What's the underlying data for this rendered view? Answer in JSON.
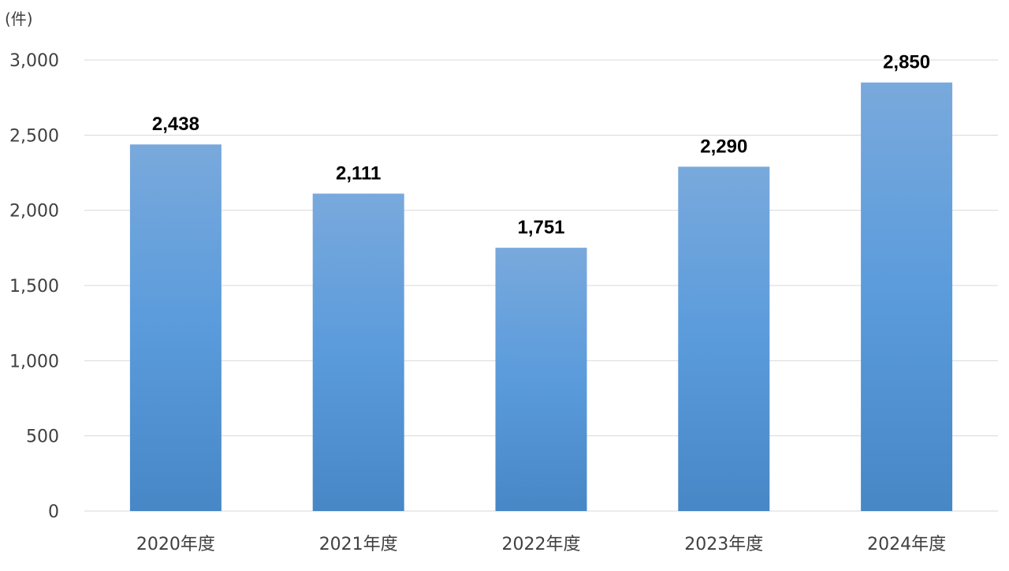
{
  "chart_data": {
    "type": "bar",
    "unit_label": "(件)",
    "categories": [
      "2020年度",
      "2021年度",
      "2022年度",
      "2023年度",
      "2024年度"
    ],
    "values": [
      2438,
      2111,
      1751,
      2290,
      2850
    ],
    "data_labels": [
      "2,438",
      "2,111",
      "1,751",
      "2,290",
      "2,850"
    ],
    "y_ticks": [
      0,
      500,
      1000,
      1500,
      2000,
      2500,
      3000
    ],
    "y_tick_labels": [
      "0",
      "500",
      "1,000",
      "1,500",
      "2,000",
      "2,500",
      "3,000"
    ],
    "ylim": [
      0,
      3000
    ],
    "grid": true,
    "legend": "none",
    "title": "",
    "xlabel": "",
    "ylabel": "",
    "colors": {
      "bar_top": "#79a9dc",
      "bar_mid": "#5a9bdc",
      "bar_bottom": "#4787c6",
      "gridline": "#d9d9d9",
      "axis_text": "#404040",
      "data_label": "#000000"
    }
  }
}
